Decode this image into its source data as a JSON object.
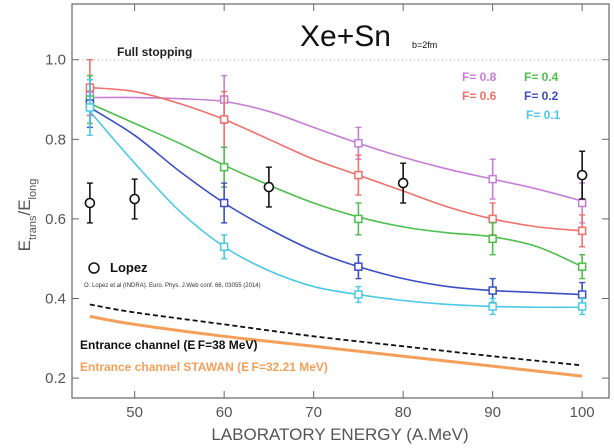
{
  "chart_data": {
    "type": "scatter",
    "title": "Xe+Sn",
    "subtitle": "b=2fm",
    "xlabel": "LABORATORY ENERGY (A.MeV)",
    "ylabel": {
      "main": "E",
      "num_sub": "trans",
      "slash": "/E",
      "den_sub": "long"
    },
    "xlim": [
      43,
      103
    ],
    "ylim": [
      0.15,
      1.14
    ],
    "xticks": [
      50,
      60,
      70,
      80,
      90,
      100
    ],
    "yticks": [
      0.2,
      0.4,
      0.6,
      0.8,
      1.0
    ],
    "ytick_labels": [
      "0.2",
      "0.4",
      "0.6",
      "0.8",
      "1.0"
    ],
    "grid": false,
    "legend_position": "top-right",
    "annotations": {
      "full_stopping": {
        "label": "Full stopping",
        "y": 1.0
      },
      "lopez_label": "Lopez",
      "lopez_ref": "O. Lopez et al (INDRA). Euro. Phys. J.Web conf. 66, 03055 (2014)",
      "entrance_channel": "Entrance channel (E F=38 MeV)",
      "entrance_channel_stawan": "Entrance channel STAWAN (E F=32.21 MeV)"
    },
    "series": [
      {
        "name": "F= 0.8",
        "color": "#c77dd6",
        "points": [
          [
            45,
            0.91,
            0.05
          ],
          [
            60,
            0.9,
            0.06
          ],
          [
            75,
            0.79,
            0.04
          ],
          [
            90,
            0.7,
            0.05
          ],
          [
            100,
            0.64,
            0.05
          ]
        ],
        "curve": [
          [
            45,
            0.905
          ],
          [
            50,
            0.905
          ],
          [
            55,
            0.902
          ],
          [
            60,
            0.895
          ],
          [
            65,
            0.87
          ],
          [
            70,
            0.83
          ],
          [
            75,
            0.79
          ],
          [
            80,
            0.755
          ],
          [
            85,
            0.725
          ],
          [
            90,
            0.7
          ],
          [
            95,
            0.675
          ],
          [
            100,
            0.645
          ]
        ]
      },
      {
        "name": "F= 0.6",
        "color": "#f0706a",
        "points": [
          [
            45,
            0.93,
            0.07
          ],
          [
            60,
            0.85,
            0.07
          ],
          [
            75,
            0.71,
            0.05
          ],
          [
            90,
            0.6,
            0.04
          ],
          [
            100,
            0.57,
            0.04
          ]
        ],
        "curve": [
          [
            45,
            0.93
          ],
          [
            50,
            0.92
          ],
          [
            55,
            0.89
          ],
          [
            60,
            0.85
          ],
          [
            65,
            0.8
          ],
          [
            70,
            0.75
          ],
          [
            75,
            0.71
          ],
          [
            80,
            0.67
          ],
          [
            85,
            0.63
          ],
          [
            90,
            0.6
          ],
          [
            95,
            0.58
          ],
          [
            100,
            0.57
          ]
        ]
      },
      {
        "name": "F= 0.4",
        "color": "#4cbf4c",
        "points": [
          [
            45,
            0.9,
            0.06
          ],
          [
            60,
            0.73,
            0.05
          ],
          [
            75,
            0.6,
            0.04
          ],
          [
            90,
            0.55,
            0.04
          ],
          [
            100,
            0.48,
            0.03
          ]
        ],
        "curve": [
          [
            45,
            0.89
          ],
          [
            50,
            0.84
          ],
          [
            55,
            0.79
          ],
          [
            60,
            0.735
          ],
          [
            65,
            0.685
          ],
          [
            70,
            0.64
          ],
          [
            75,
            0.605
          ],
          [
            80,
            0.58
          ],
          [
            85,
            0.565
          ],
          [
            90,
            0.555
          ],
          [
            95,
            0.53
          ],
          [
            100,
            0.48
          ]
        ]
      },
      {
        "name": "F= 0.2",
        "color": "#3a4fc4",
        "points": [
          [
            45,
            0.89,
            0.06
          ],
          [
            60,
            0.64,
            0.05
          ],
          [
            75,
            0.48,
            0.03
          ],
          [
            90,
            0.42,
            0.03
          ],
          [
            100,
            0.41,
            0.03
          ]
        ],
        "curve": [
          [
            45,
            0.88
          ],
          [
            50,
            0.81
          ],
          [
            55,
            0.72
          ],
          [
            60,
            0.64
          ],
          [
            65,
            0.575
          ],
          [
            70,
            0.52
          ],
          [
            75,
            0.48
          ],
          [
            80,
            0.45
          ],
          [
            85,
            0.43
          ],
          [
            90,
            0.42
          ],
          [
            95,
            0.415
          ],
          [
            100,
            0.41
          ]
        ]
      },
      {
        "name": "F= 0.1",
        "color": "#4cc8e8",
        "points": [
          [
            45,
            0.88,
            0.07
          ],
          [
            60,
            0.53,
            0.03
          ],
          [
            75,
            0.41,
            0.02
          ],
          [
            90,
            0.38,
            0.02
          ],
          [
            100,
            0.38,
            0.02
          ]
        ],
        "curve": [
          [
            45,
            0.87
          ],
          [
            50,
            0.74
          ],
          [
            55,
            0.62
          ],
          [
            60,
            0.53
          ],
          [
            65,
            0.47
          ],
          [
            70,
            0.43
          ],
          [
            75,
            0.41
          ],
          [
            80,
            0.395
          ],
          [
            85,
            0.385
          ],
          [
            90,
            0.38
          ],
          [
            95,
            0.378
          ],
          [
            100,
            0.378
          ]
        ]
      },
      {
        "name": "Lopez",
        "color": "#111111",
        "marker": "circle",
        "points": [
          [
            45,
            0.64,
            0.05
          ],
          [
            50,
            0.65,
            0.05
          ],
          [
            65,
            0.68,
            0.05
          ],
          [
            80,
            0.69,
            0.05
          ],
          [
            100,
            0.71,
            0.06
          ]
        ]
      },
      {
        "name": "Entrance channel (EF=38 MeV)",
        "color": "#111111",
        "style": "dashed",
        "curve": [
          [
            45,
            0.385
          ],
          [
            50,
            0.365
          ],
          [
            60,
            0.335
          ],
          [
            70,
            0.305
          ],
          [
            80,
            0.28
          ],
          [
            90,
            0.255
          ],
          [
            100,
            0.232
          ]
        ]
      },
      {
        "name": "Entrance channel STAWAN (EF=32.21 MeV)",
        "color": "#f5a05a",
        "style": "solid",
        "curve": [
          [
            45,
            0.355
          ],
          [
            50,
            0.335
          ],
          [
            60,
            0.305
          ],
          [
            70,
            0.28
          ],
          [
            80,
            0.255
          ],
          [
            90,
            0.23
          ],
          [
            100,
            0.205
          ]
        ]
      }
    ],
    "legend": [
      {
        "label": "F= 0.8",
        "color": "#c77dd6"
      },
      {
        "label": "F= 0.4",
        "color": "#4cbf4c"
      },
      {
        "label": "F= 0.6",
        "color": "#f0706a"
      },
      {
        "label": "F= 0.2",
        "color": "#3a4fc4"
      },
      {
        "label": "F= 0.1",
        "color": "#4cc8e8"
      }
    ]
  }
}
